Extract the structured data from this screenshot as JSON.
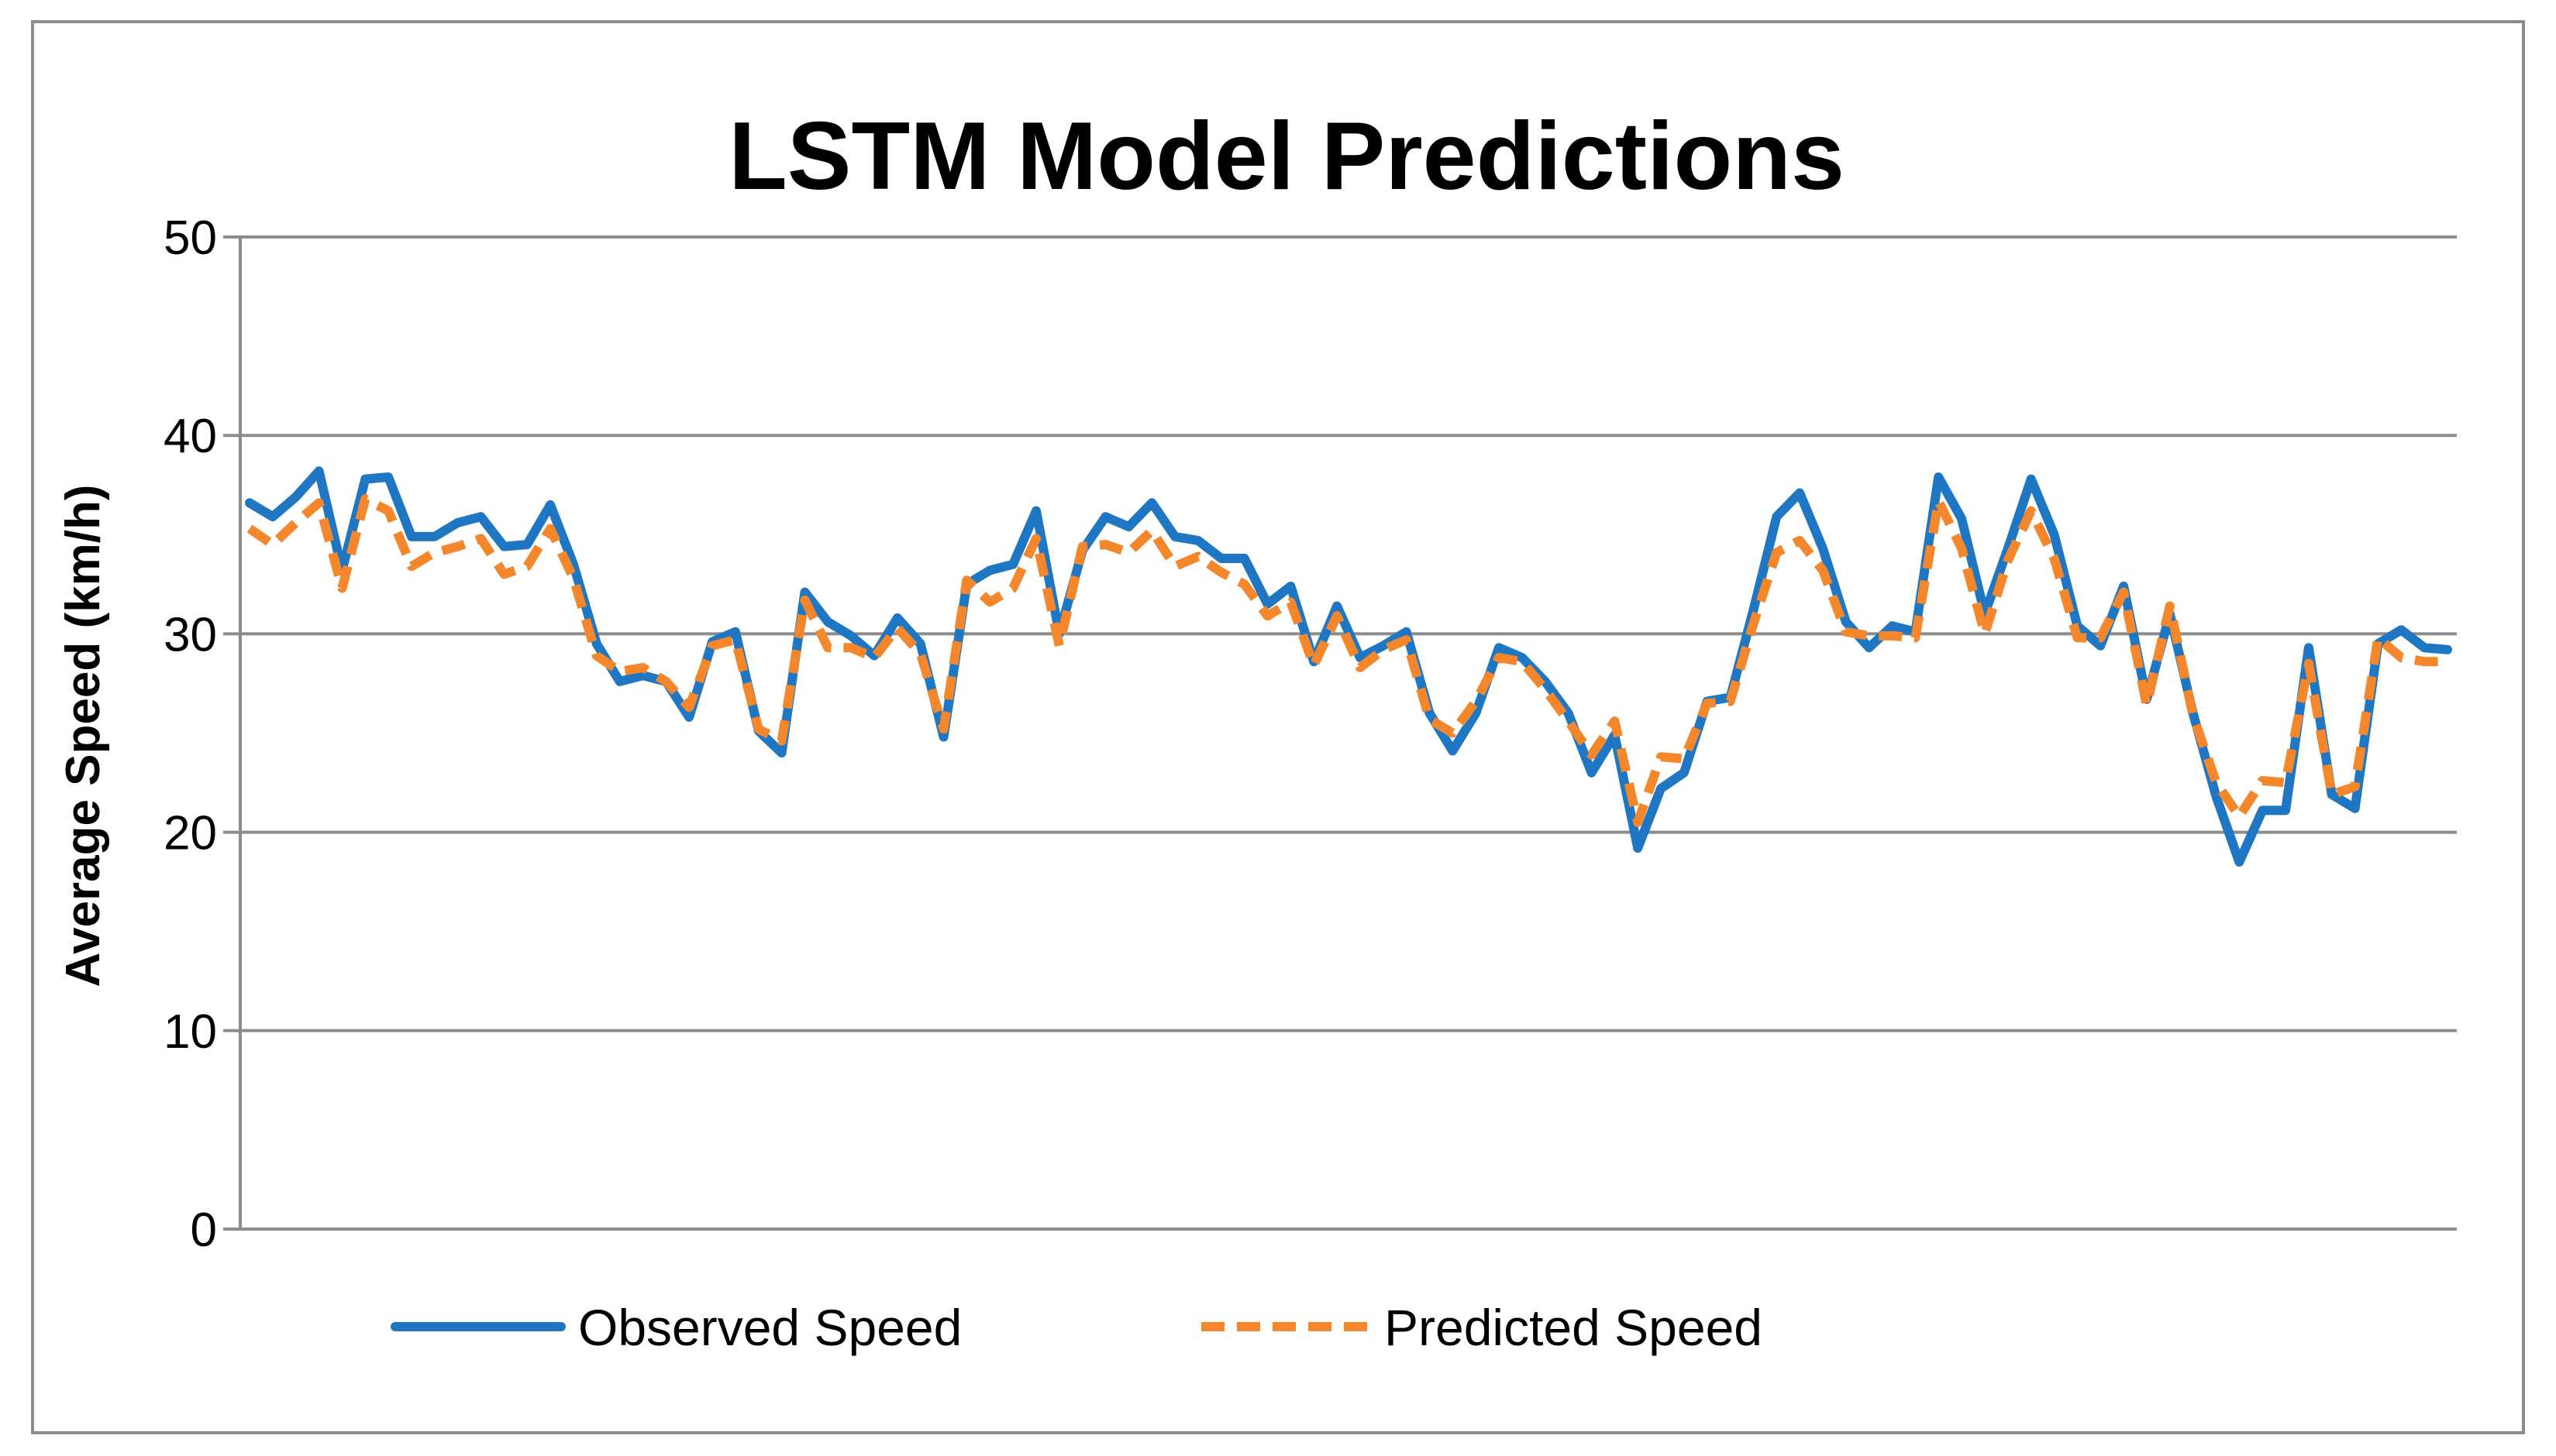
{
  "chart_data": {
    "type": "line",
    "title": "LSTM Model Predictions",
    "xlabel": "",
    "ylabel": "Average Speed (km/h)",
    "ylim": [
      0,
      50
    ],
    "yticks": [
      0,
      10,
      20,
      30,
      40,
      50
    ],
    "grid": true,
    "legend_position": "bottom",
    "colors": {
      "observed": "#1f77c4",
      "predicted": "#f4862b",
      "grid": "#8c8c8c",
      "axis": "#8c8c8c"
    },
    "series": [
      {
        "name": "Observed Speed",
        "style": "solid",
        "values": [
          36.6,
          35.9,
          36.9,
          38.2,
          33.2,
          37.8,
          37.9,
          34.9,
          34.9,
          35.6,
          35.9,
          34.4,
          34.5,
          36.5,
          33.5,
          29.5,
          27.6,
          27.9,
          27.6,
          25.8,
          29.6,
          30.1,
          25.1,
          24.0,
          32.1,
          30.6,
          29.9,
          28.9,
          30.8,
          29.5,
          24.8,
          32.5,
          33.2,
          33.5,
          36.2,
          30.0,
          34.2,
          35.9,
          35.4,
          36.6,
          34.9,
          34.7,
          33.8,
          33.8,
          31.5,
          32.4,
          28.6,
          31.4,
          28.8,
          29.4,
          30.1,
          26.0,
          24.1,
          26.0,
          29.3,
          28.8,
          27.6,
          26.0,
          23.0,
          24.9,
          19.2,
          22.2,
          23.0,
          26.6,
          26.8,
          31.2,
          35.9,
          37.1,
          34.3,
          30.6,
          29.3,
          30.4,
          30.1,
          37.9,
          35.8,
          31.0,
          34.3,
          37.8,
          35.0,
          30.4,
          29.4,
          32.4,
          26.7,
          31.0,
          26.0,
          21.8,
          18.5,
          21.1,
          21.1,
          29.3,
          21.9,
          21.2,
          29.5,
          30.2,
          29.3,
          29.2
        ]
      },
      {
        "name": "Predicted Speed",
        "style": "dashed",
        "values": [
          35.3,
          34.5,
          35.6,
          36.6,
          32.3,
          36.8,
          36.2,
          33.4,
          34.1,
          34.4,
          34.8,
          33.0,
          33.4,
          35.3,
          32.8,
          28.9,
          28.1,
          28.3,
          27.6,
          26.3,
          29.4,
          29.7,
          25.2,
          24.6,
          31.7,
          29.3,
          29.3,
          28.8,
          30.3,
          29.0,
          25.2,
          32.7,
          31.6,
          32.3,
          34.8,
          29.4,
          34.4,
          34.5,
          34.1,
          35.2,
          33.4,
          33.9,
          33.1,
          32.5,
          30.9,
          31.6,
          28.4,
          30.9,
          28.3,
          29.2,
          29.7,
          25.7,
          25.0,
          26.6,
          28.8,
          28.6,
          27.2,
          25.6,
          23.9,
          25.6,
          20.5,
          23.8,
          23.7,
          26.5,
          26.6,
          30.5,
          34.1,
          34.7,
          33.2,
          30.1,
          29.9,
          29.9,
          29.8,
          36.7,
          34.3,
          30.0,
          33.7,
          36.2,
          33.8,
          29.8,
          29.8,
          32.1,
          26.4,
          31.4,
          25.9,
          22.5,
          20.8,
          22.6,
          22.5,
          28.5,
          21.9,
          22.3,
          29.8,
          28.8,
          28.6,
          28.6
        ]
      }
    ]
  }
}
